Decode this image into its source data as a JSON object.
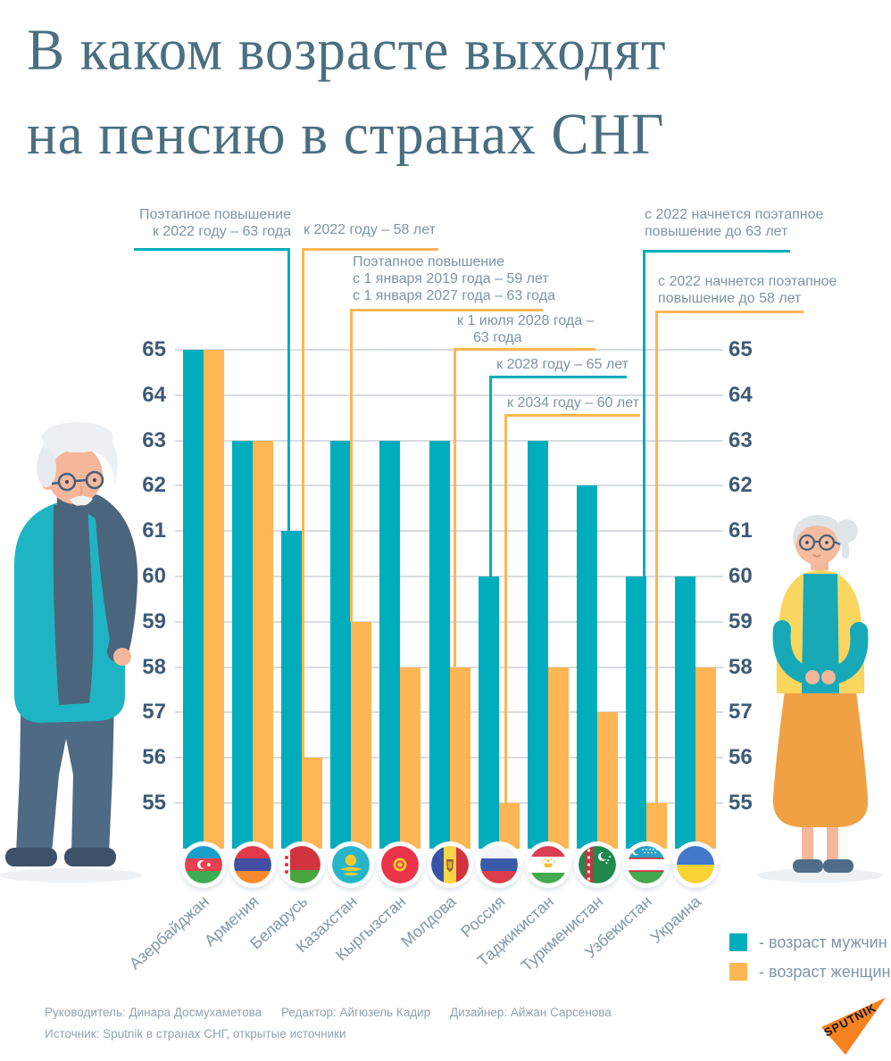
{
  "title": {
    "line1": "В каком возрасте выходят",
    "line2": "на пенсию в странах СНГ"
  },
  "chart_data": {
    "type": "bar",
    "categories": [
      "Азербайджан",
      "Армения",
      "Беларусь",
      "Казахстан",
      "Кыргызстан",
      "Молдова",
      "Россия",
      "Таджикистан",
      "Туркменистан",
      "Узбекистан",
      "Украина"
    ],
    "series": [
      {
        "name": "возраст мужчин",
        "color": "#00adbc",
        "values": [
          65,
          63,
          61,
          63,
          63,
          63,
          60,
          63,
          62,
          60,
          60
        ]
      },
      {
        "name": "возраст женщин",
        "color": "#fdb653",
        "values": [
          65,
          63,
          56,
          59,
          58,
          58,
          55,
          58,
          57,
          55,
          58
        ]
      }
    ],
    "yticks": [
      65,
      64,
      63,
      62,
      61,
      60,
      59,
      58,
      57,
      56,
      55
    ],
    "ylim": [
      55,
      65
    ],
    "grid": true,
    "legend_position": "bottom-right",
    "annotations": [
      {
        "target": "Беларусь, мужчины",
        "series": "men",
        "lines": [
          "Поэтапное повышение",
          "к 2022 году – 63 года"
        ]
      },
      {
        "target": "Беларусь, женщины",
        "series": "women",
        "lines": [
          "к 2022 году – 58 лет"
        ]
      },
      {
        "target": "Казахстан, женщины",
        "series": "women",
        "lines": [
          "Поэтапное повышение",
          "с 1 января 2019 года – 59 лет",
          "с 1 января 2027 года – 63 года"
        ]
      },
      {
        "target": "Молдова, женщины",
        "series": "women",
        "lines": [
          "к 1 июля 2028 года –",
          "63 года"
        ]
      },
      {
        "target": "Россия, мужчины",
        "series": "men",
        "lines": [
          "к 2028 году – 65 лет"
        ]
      },
      {
        "target": "Россия, женщины",
        "series": "women",
        "lines": [
          "к 2034 году – 60 лет"
        ]
      },
      {
        "target": "Узбекистан, мужчины",
        "series": "men",
        "lines": [
          "с 2022 начнется поэтапное",
          "повышение до 63 лет"
        ]
      },
      {
        "target": "Узбекистан, женщины",
        "series": "women",
        "lines": [
          "с 2022 начнется поэтапное",
          "повышение до 58 лет"
        ]
      }
    ]
  },
  "legend": {
    "men": "- возраст мужчин",
    "women": "- возраст женщин"
  },
  "flags": [
    "flag-azerbaijan",
    "flag-armenia",
    "flag-belarus",
    "flag-kazakhstan",
    "flag-kyrgyzstan",
    "flag-moldova",
    "flag-russia",
    "flag-tajikistan",
    "flag-turkmenistan",
    "flag-uzbekistan",
    "flag-ukraine"
  ],
  "footer": {
    "credits": [
      "Руководитель: Динара Досмухаметова",
      "Редактор: Айгюзель Кадир",
      "Дизайнер: Айжан Сарсенова"
    ],
    "source": "Источник: Sputnik в странах СНГ, открытые источники",
    "logo_text": "SPUTNIK"
  },
  "colors": {
    "men": "#00adbc",
    "women": "#fdb653",
    "title": "#4a6f80",
    "axis_label": "#3d5a76",
    "annotation_text": "#7d94a5",
    "grid": "#d7dde1",
    "sputnik_orange": "#f5821f"
  }
}
